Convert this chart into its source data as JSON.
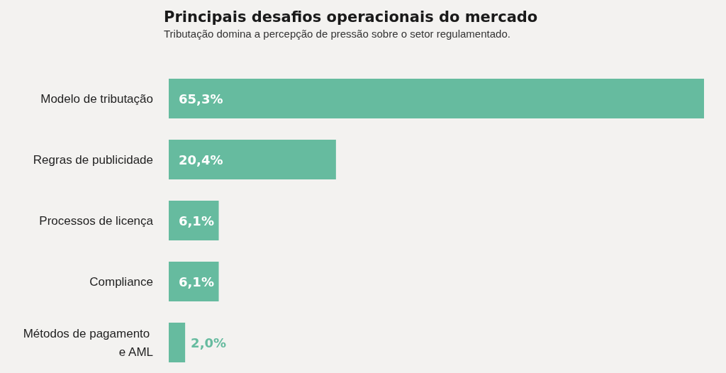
{
  "chart_data": {
    "type": "bar",
    "orientation": "horizontal",
    "title": "Principais desafios operacionais do mercado",
    "subtitle": "Tributação domina a percepção de pressão sobre o setor regulamentado.",
    "categories": [
      "Modelo de tributação",
      "Regras de publicidade",
      "Processos de licença",
      "Compliance",
      "Métodos de pagamento e AML"
    ],
    "values": [
      65.3,
      20.4,
      6.1,
      6.1,
      2.0
    ],
    "value_labels": [
      "65,3%",
      "20,4%",
      "6,1%",
      "6,1%",
      "2,0%"
    ],
    "color": "#66bb9f"
  }
}
